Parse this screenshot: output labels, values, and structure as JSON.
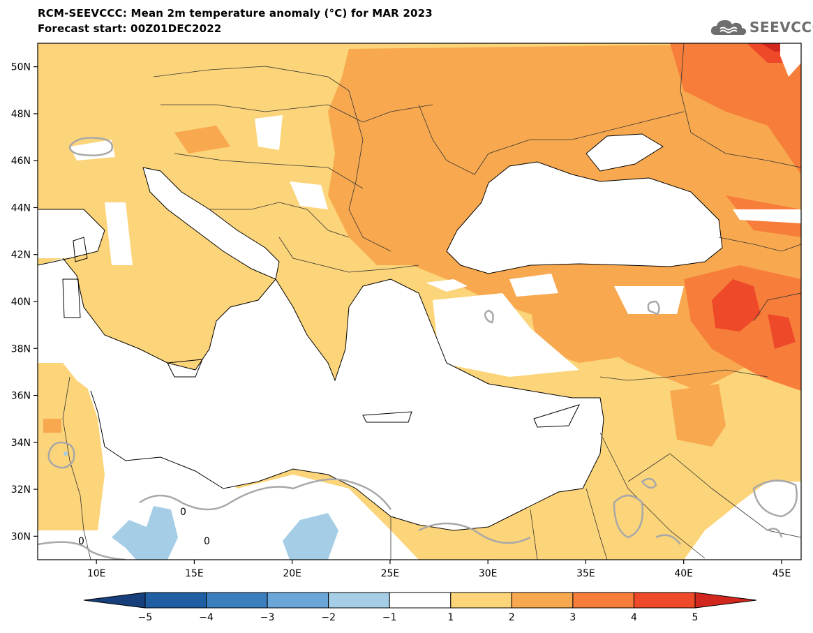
{
  "header": {
    "title": "RCM-SEEVCCC: Mean 2m temperature anomaly (°C) for MAR 2023",
    "subtitle": "Forecast start: 00Z01DEC2022"
  },
  "logo": {
    "text": "SEEVCCC",
    "icon": "cloud-icon"
  },
  "map": {
    "lon_range": [
      7,
      46
    ],
    "lat_range": [
      29,
      51
    ],
    "lon_ticks": [
      {
        "value": 10,
        "label": "10E"
      },
      {
        "value": 15,
        "label": "15E"
      },
      {
        "value": 20,
        "label": "20E"
      },
      {
        "value": 25,
        "label": "25E"
      },
      {
        "value": 30,
        "label": "30E"
      },
      {
        "value": 35,
        "label": "35E"
      },
      {
        "value": 40,
        "label": "40E"
      },
      {
        "value": 45,
        "label": "45E"
      }
    ],
    "lat_ticks": [
      {
        "value": 30,
        "label": "30N"
      },
      {
        "value": 32,
        "label": "32N"
      },
      {
        "value": 34,
        "label": "34N"
      },
      {
        "value": 36,
        "label": "36N"
      },
      {
        "value": 38,
        "label": "38N"
      },
      {
        "value": 40,
        "label": "40N"
      },
      {
        "value": 42,
        "label": "42N"
      },
      {
        "value": 44,
        "label": "44N"
      },
      {
        "value": 46,
        "label": "46N"
      },
      {
        "value": 48,
        "label": "48N"
      },
      {
        "value": 50,
        "label": "50N"
      }
    ],
    "contour_label": "0"
  },
  "colorbar": {
    "boundaries": [
      "−5",
      "−4",
      "−3",
      "−2",
      "−1",
      "1",
      "2",
      "3",
      "4",
      "5"
    ],
    "colors": [
      "#1f5ea3",
      "#3b7fbf",
      "#6aa7d8",
      "#a5cde6",
      "#ffffff",
      "#fcd479",
      "#f8a94f",
      "#f67e3a",
      "#ee4a2a"
    ],
    "under_color": "#163f7c",
    "over_color": "#d1271f"
  }
}
